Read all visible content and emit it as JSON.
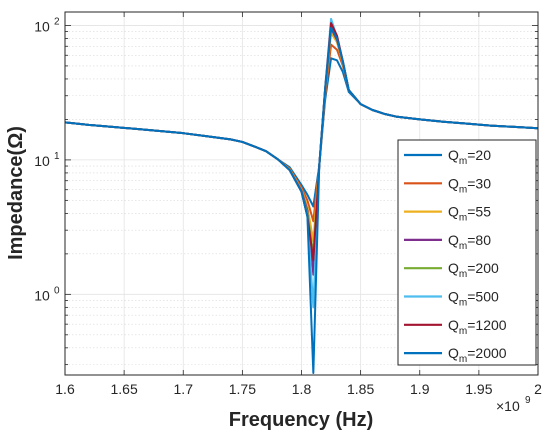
{
  "chart_data": {
    "type": "line",
    "xlabel": "Frequency (Hz)",
    "ylabel": "Impedance(Ω)",
    "x_exponent_label": "×10",
    "x_exponent_power": "9",
    "x_scale_factor": 1000000000.0,
    "xlim": [
      1.6,
      2.0
    ],
    "ylim_log10": [
      -0.6,
      2.1
    ],
    "yscale": "log",
    "grid": true,
    "minor_grid": true,
    "legend_position": "right",
    "x_ticks": [
      1.6,
      1.65,
      1.7,
      1.75,
      1.8,
      1.85,
      1.9,
      1.95,
      2.0
    ],
    "x_tick_labels": [
      "1.6",
      "1.65",
      "1.7",
      "1.75",
      "1.8",
      "1.85",
      "1.9",
      "1.95",
      "2"
    ],
    "y_ticks": [
      1,
      10,
      100
    ],
    "y_tick_bases": [
      "10",
      "10",
      "10"
    ],
    "y_tick_exps": [
      "0",
      "1",
      "2"
    ],
    "x": [
      1.6,
      1.62,
      1.64,
      1.66,
      1.68,
      1.7,
      1.72,
      1.74,
      1.75,
      1.76,
      1.77,
      1.78,
      1.79,
      1.8,
      1.805,
      1.81,
      1.815,
      1.82,
      1.825,
      1.83,
      1.835,
      1.84,
      1.85,
      1.86,
      1.87,
      1.88,
      1.9,
      1.92,
      1.94,
      1.96,
      1.98,
      2.0
    ],
    "series": [
      {
        "name": "Q_m=20",
        "label_base": "Q",
        "label_sub": "m",
        "label_rest": "=20",
        "color": "#0072BD",
        "values": [
          19,
          18.2,
          17.6,
          17,
          16.4,
          15.8,
          15,
          14.2,
          13.6,
          12.6,
          11.6,
          10.1,
          8.8,
          6.5,
          5.5,
          4.5,
          9,
          28,
          57,
          55,
          45,
          32,
          26,
          23.5,
          22,
          21,
          20,
          19.2,
          18.6,
          18,
          17.6,
          17.2
        ]
      },
      {
        "name": "Q_m=30",
        "label_base": "Q",
        "label_sub": "m",
        "label_rest": "=30",
        "color": "#D95319",
        "values": [
          19,
          18.2,
          17.6,
          17,
          16.4,
          15.8,
          15,
          14.2,
          13.6,
          12.6,
          11.6,
          10.1,
          8.6,
          6.2,
          5,
          3.5,
          9,
          30,
          72,
          66,
          50,
          33,
          26,
          23.5,
          22,
          21,
          20,
          19.2,
          18.6,
          18,
          17.6,
          17.2
        ]
      },
      {
        "name": "Q_m=55",
        "label_base": "Q",
        "label_sub": "m",
        "label_rest": "=55",
        "color": "#EDB120",
        "values": [
          19,
          18.2,
          17.6,
          17,
          16.4,
          15.8,
          15,
          14.2,
          13.6,
          12.6,
          11.6,
          10.1,
          8.5,
          6,
          4.5,
          2.5,
          9,
          32,
          88,
          75,
          52,
          33,
          26,
          23.5,
          22,
          21,
          20,
          19.2,
          18.6,
          18,
          17.6,
          17.2
        ]
      },
      {
        "name": "Q_m=80",
        "label_base": "Q",
        "label_sub": "m",
        "label_rest": "=80",
        "color": "#7E2F8E",
        "values": [
          19,
          18.2,
          17.6,
          17,
          16.4,
          15.8,
          15,
          14.2,
          13.6,
          12.6,
          11.6,
          10.1,
          8.4,
          5.9,
          4.2,
          1.4,
          9,
          33,
          95,
          78,
          53,
          33,
          26,
          23.5,
          22,
          21,
          20,
          19.2,
          18.6,
          18,
          17.6,
          17.2
        ]
      },
      {
        "name": "Q_m=200",
        "label_base": "Q",
        "label_sub": "m",
        "label_rest": "=200",
        "color": "#77AC30",
        "values": [
          19,
          18.2,
          17.6,
          17,
          16.4,
          15.8,
          15,
          14.2,
          13.6,
          12.6,
          11.6,
          10.1,
          8.4,
          5.8,
          4,
          2,
          9,
          33,
          100,
          80,
          53,
          33,
          26,
          23.5,
          22,
          21,
          20,
          19.2,
          18.6,
          18,
          17.6,
          17.2
        ]
      },
      {
        "name": "Q_m=500",
        "label_base": "Q",
        "label_sub": "m",
        "label_rest": "=500",
        "color": "#4DBEEE",
        "values": [
          19,
          18.2,
          17.6,
          17,
          16.4,
          15.8,
          15,
          14.2,
          13.6,
          12.6,
          11.6,
          10.1,
          8.4,
          5.8,
          3.8,
          0.8,
          9,
          34,
          112,
          82,
          54,
          33,
          26,
          23.5,
          22,
          21,
          20,
          19.2,
          18.6,
          18,
          17.6,
          17.2
        ]
      },
      {
        "name": "Q_m=1200",
        "label_base": "Q",
        "label_sub": "m",
        "label_rest": "=1200",
        "color": "#A2142F",
        "values": [
          19,
          18.2,
          17.6,
          17,
          16.4,
          15.8,
          15,
          14.2,
          13.6,
          12.6,
          11.6,
          10.1,
          8.4,
          5.8,
          3.8,
          1.8,
          9,
          34,
          104,
          84,
          54,
          33,
          26,
          23.5,
          22,
          21,
          20,
          19.2,
          18.6,
          18,
          17.6,
          17.2
        ]
      },
      {
        "name": "Q_m=2000",
        "label_base": "Q",
        "label_sub": "m",
        "label_rest": "=2000",
        "color": "#0072BD",
        "values": [
          19,
          18.2,
          17.6,
          17,
          16.4,
          15.8,
          15,
          14.2,
          13.6,
          12.6,
          11.6,
          10.1,
          8.4,
          5.8,
          3.8,
          0.26,
          9,
          34,
          96,
          80,
          54,
          33,
          26,
          23.5,
          22,
          21,
          20,
          19.2,
          18.6,
          18,
          17.6,
          17.2
        ]
      }
    ]
  }
}
